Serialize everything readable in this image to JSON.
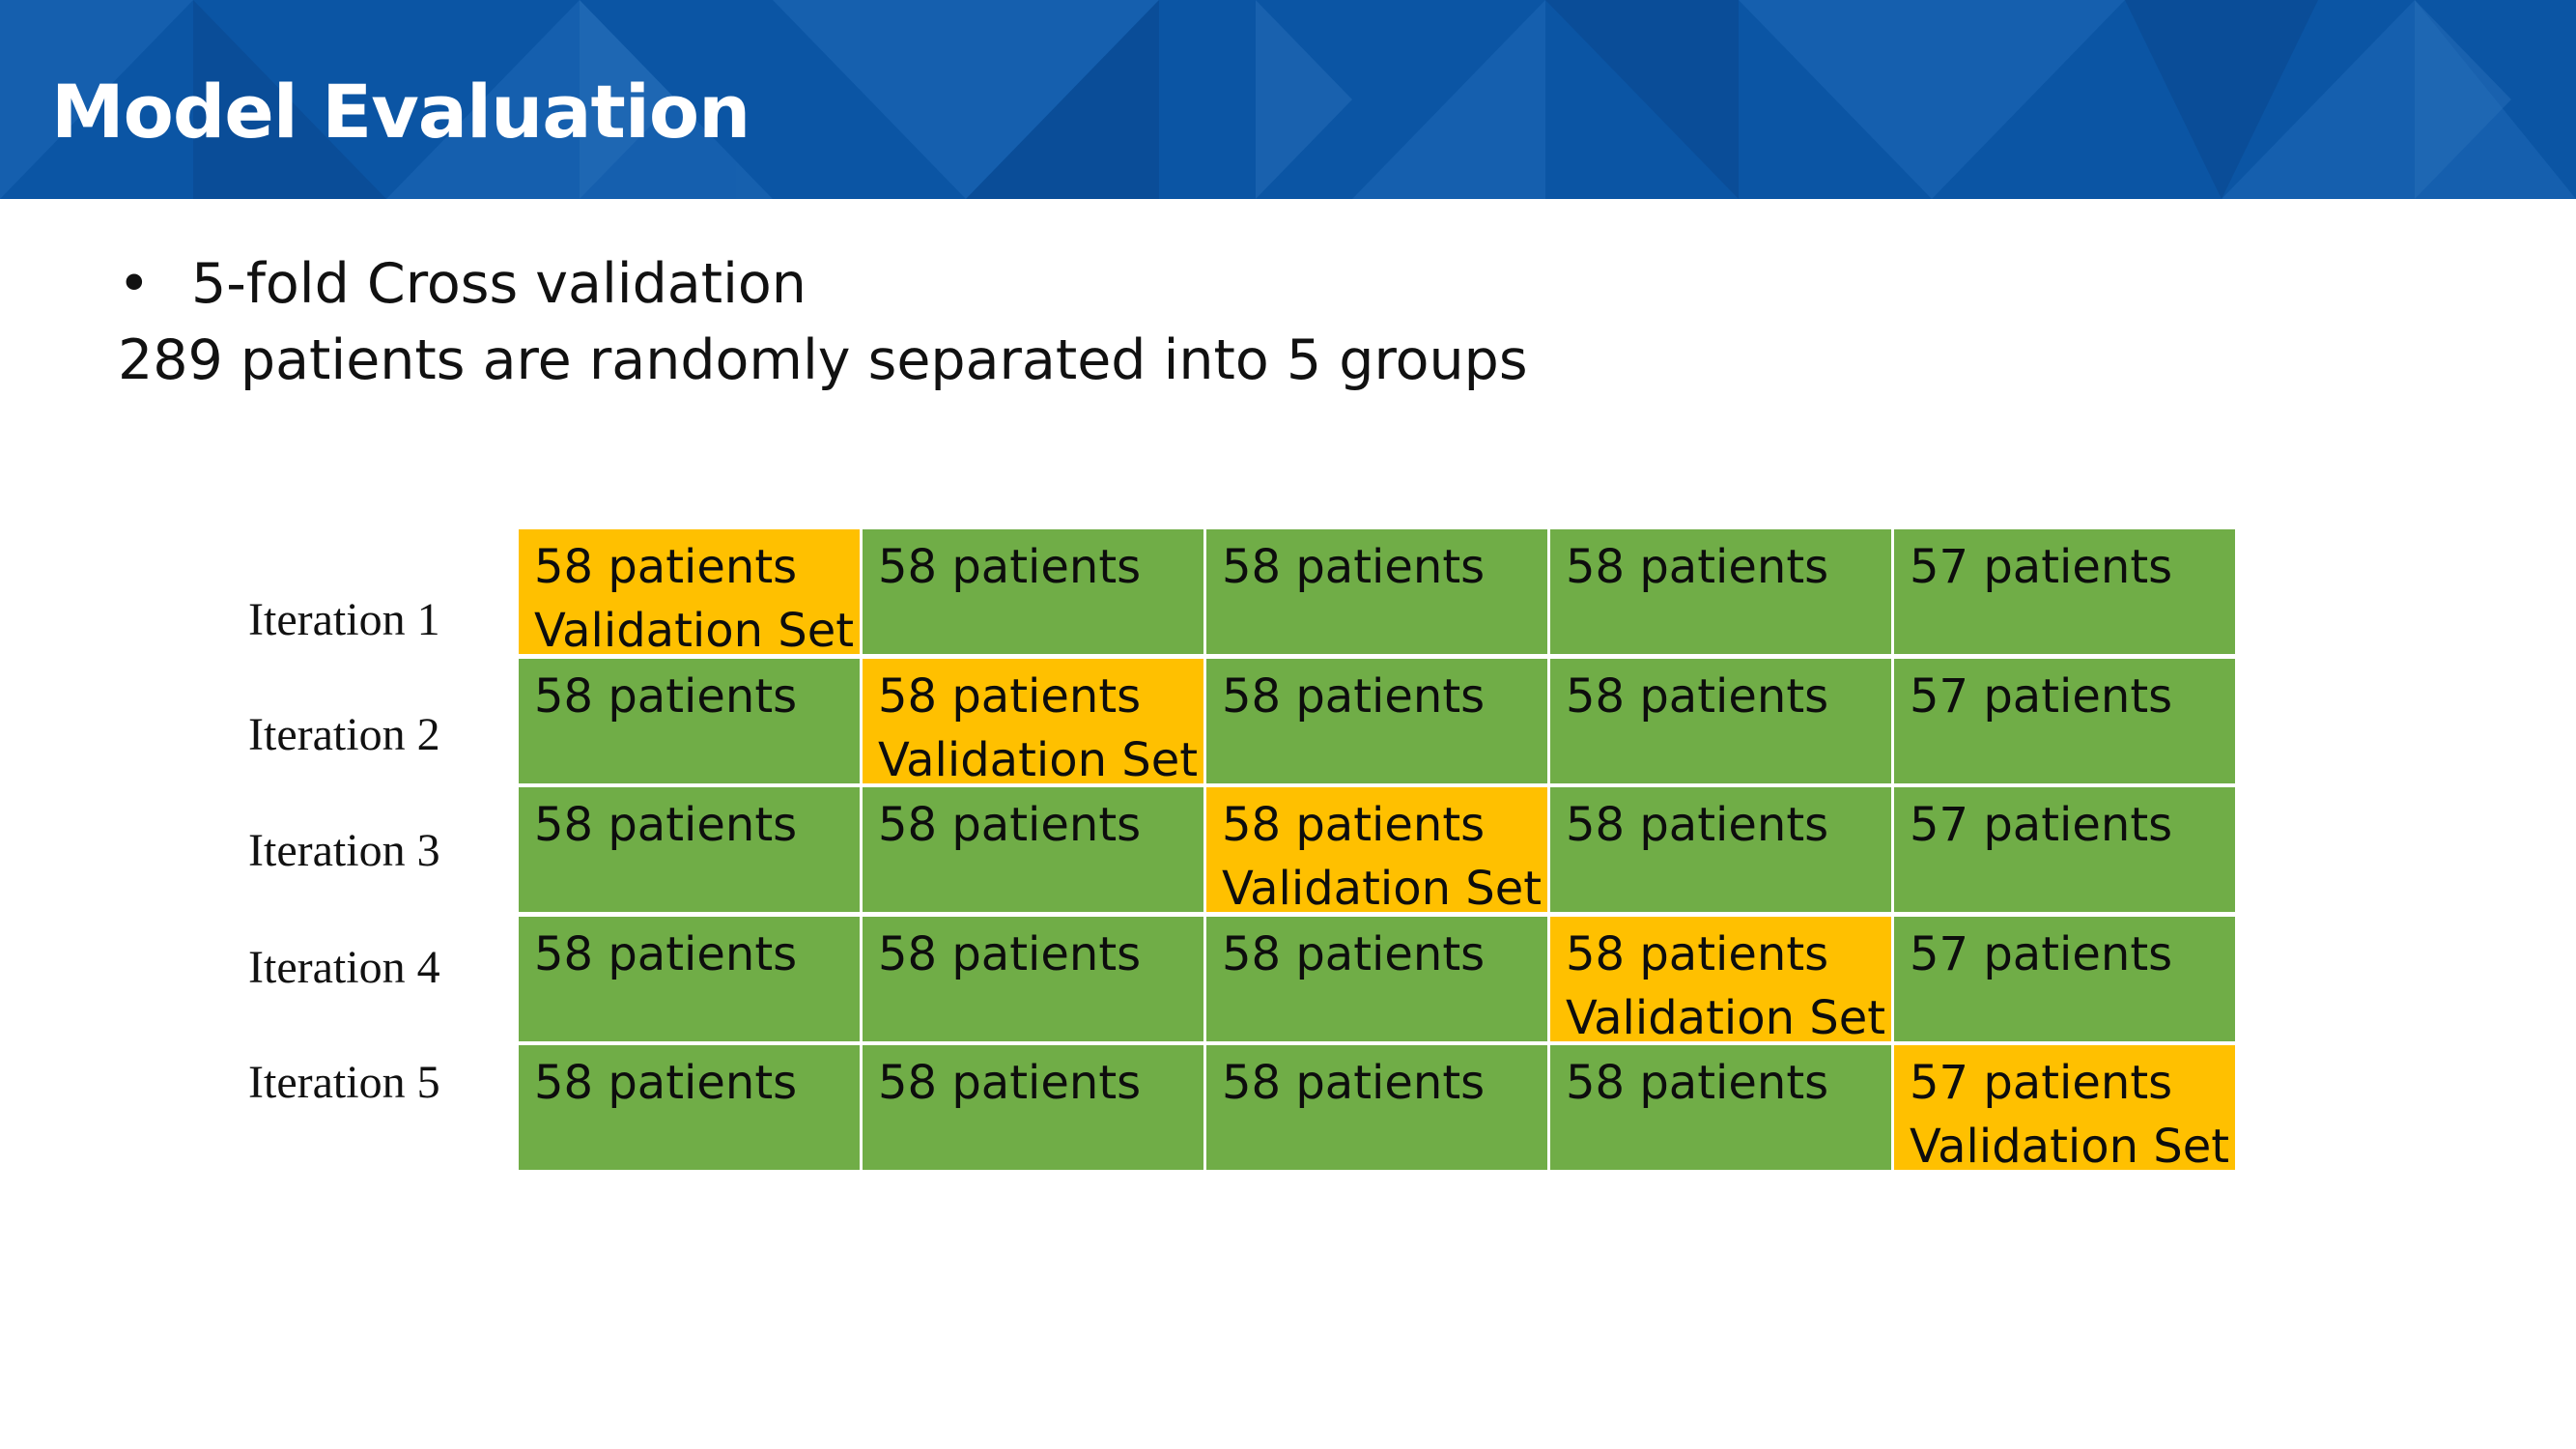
{
  "slide": {
    "title": "Model Evaluation",
    "bullet_symbol": "•",
    "bullet_text": "5-fold Cross validation",
    "subtitle": "289 patients are randomly separated into 5 groups"
  },
  "colors": {
    "header_blue": "#0b55a4",
    "training_green": "#70ad47",
    "validation_orange": "#ffc000"
  },
  "iterations": [
    {
      "label": "Iteration 1",
      "cells": [
        {
          "patients": "58 patients",
          "role": "Validation Set"
        },
        {
          "patients": "58 patients",
          "role": ""
        },
        {
          "patients": "58 patients",
          "role": ""
        },
        {
          "patients": "58 patients",
          "role": ""
        },
        {
          "patients": "57 patients",
          "role": ""
        }
      ]
    },
    {
      "label": "Iteration 2",
      "cells": [
        {
          "patients": "58 patients",
          "role": ""
        },
        {
          "patients": "58 patients",
          "role": "Validation Set"
        },
        {
          "patients": "58 patients",
          "role": ""
        },
        {
          "patients": "58 patients",
          "role": ""
        },
        {
          "patients": "57 patients",
          "role": ""
        }
      ]
    },
    {
      "label": "Iteration 3",
      "cells": [
        {
          "patients": "58 patients",
          "role": ""
        },
        {
          "patients": "58 patients",
          "role": ""
        },
        {
          "patients": "58 patients",
          "role": "Validation Set"
        },
        {
          "patients": "58 patients",
          "role": ""
        },
        {
          "patients": "57 patients",
          "role": ""
        }
      ]
    },
    {
      "label": "Iteration 4",
      "cells": [
        {
          "patients": "58 patients",
          "role": ""
        },
        {
          "patients": "58 patients",
          "role": ""
        },
        {
          "patients": "58 patients",
          "role": ""
        },
        {
          "patients": "58 patients",
          "role": "Validation Set"
        },
        {
          "patients": "57 patients",
          "role": ""
        }
      ]
    },
    {
      "label": "Iteration 5",
      "cells": [
        {
          "patients": "58 patients",
          "role": ""
        },
        {
          "patients": "58 patients",
          "role": ""
        },
        {
          "patients": "58 patients",
          "role": ""
        },
        {
          "patients": "58 patients",
          "role": ""
        },
        {
          "patients": "57 patients",
          "role": "Validation Set"
        }
      ]
    }
  ]
}
